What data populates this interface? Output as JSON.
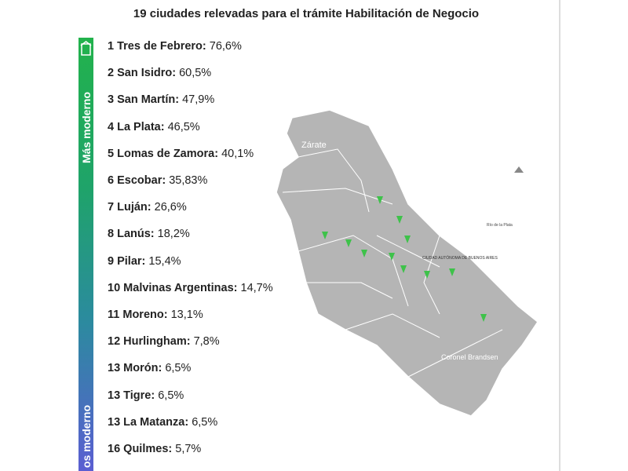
{
  "header": {
    "title": "19 ciudades relevadas para el trámite Habilitación de Negocio"
  },
  "scale": {
    "top_label": "Más moderno",
    "bottom_label": "os moderno"
  },
  "ranking": [
    {
      "rank": "1",
      "name": "Tres de Febrero:",
      "value": "76,6%"
    },
    {
      "rank": "2",
      "name": "San Isidro:",
      "value": "60,5%"
    },
    {
      "rank": "3",
      "name": "San Martín:",
      "value": "47,9%"
    },
    {
      "rank": "4",
      "name": "La Plata:",
      "value": "46,5%"
    },
    {
      "rank": "5",
      "name": "Lomas de Zamora:",
      "value": "40,1%"
    },
    {
      "rank": "6",
      "name": "Escobar:",
      "value": "35,83%"
    },
    {
      "rank": "7",
      "name": "Luján:",
      "value": "26,6%"
    },
    {
      "rank": "8",
      "name": "Lanús:",
      "value": "18,2%"
    },
    {
      "rank": "9",
      "name": "Pilar:",
      "value": "15,4%"
    },
    {
      "rank": "10",
      "name": "Malvinas Argentinas:",
      "value": "14,7%"
    },
    {
      "rank": "11",
      "name": "Moreno:",
      "value": "13,1%"
    },
    {
      "rank": "12",
      "name": "Hurlingham:",
      "value": "7,8%"
    },
    {
      "rank": "13",
      "name": "Morón:",
      "value": "6,5%"
    },
    {
      "rank": "13",
      "name": "Tigre:",
      "value": "6,5%"
    },
    {
      "rank": "13",
      "name": "La Matanza:",
      "value": "6,5%"
    },
    {
      "rank": "16",
      "name": "Quilmes:",
      "value": "5,7%"
    }
  ],
  "map": {
    "labels": [
      "Zárate",
      "Coronel Brandsen",
      "Río de la Plata",
      "CIUDAD AUTÓNOMA DE BUENOS AIRES"
    ]
  }
}
